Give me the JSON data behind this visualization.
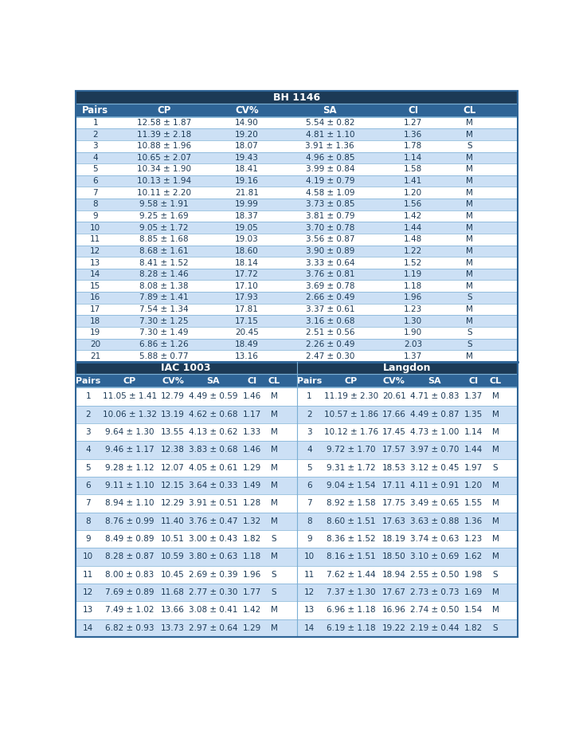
{
  "bh1146_header": "BH 1146",
  "bh1146_cols": [
    "Pairs",
    "CP",
    "CV%",
    "SA",
    "CI",
    "CL"
  ],
  "bh1146_rows": [
    [
      "1",
      "12.58 ± 1.87",
      "14.90",
      "5.54 ± 0.82",
      "1.27",
      "M"
    ],
    [
      "2",
      "11.39 ± 2.18",
      "19.20",
      "4.81 ± 1.10",
      "1.36",
      "M"
    ],
    [
      "3",
      "10.88 ± 1.96",
      "18.07",
      "3.91 ± 1.36",
      "1.78",
      "S"
    ],
    [
      "4",
      "10.65 ± 2.07",
      "19.43",
      "4.96 ± 0.85",
      "1.14",
      "M"
    ],
    [
      "5",
      "10.34 ± 1.90",
      "18.41",
      "3.99 ± 0.84",
      "1.58",
      "M"
    ],
    [
      "6",
      "10.13 ± 1.94",
      "19.16",
      "4.19 ± 0.79",
      "1.41",
      "M"
    ],
    [
      "7",
      "10.11 ± 2.20",
      "21.81",
      "4.58 ± 1.09",
      "1.20",
      "M"
    ],
    [
      "8",
      "9.58 ± 1.91",
      "19.99",
      "3.73 ± 0.85",
      "1.56",
      "M"
    ],
    [
      "9",
      "9.25 ± 1.69",
      "18.37",
      "3.81 ± 0.79",
      "1.42",
      "M"
    ],
    [
      "10",
      "9.05 ± 1.72",
      "19.05",
      "3.70 ± 0.78",
      "1.44",
      "M"
    ],
    [
      "11",
      "8.85 ± 1.68",
      "19.03",
      "3.56 ± 0.87",
      "1.48",
      "M"
    ],
    [
      "12",
      "8.68 ± 1.61",
      "18.60",
      "3.90 ± 0.89",
      "1.22",
      "M"
    ],
    [
      "13",
      "8.41 ± 1.52",
      "18.14",
      "3.33 ± 0.64",
      "1.52",
      "M"
    ],
    [
      "14",
      "8.28 ± 1.46",
      "17.72",
      "3.76 ± 0.81",
      "1.19",
      "M"
    ],
    [
      "15",
      "8.08 ± 1.38",
      "17.10",
      "3.69 ± 0.78",
      "1.18",
      "M"
    ],
    [
      "16",
      "7.89 ± 1.41",
      "17.93",
      "2.66 ± 0.49",
      "1.96",
      "S"
    ],
    [
      "17",
      "7.54 ± 1.34",
      "17.81",
      "3.37 ± 0.61",
      "1.23",
      "M"
    ],
    [
      "18",
      "7.30 ± 1.25",
      "17.15",
      "3.16 ± 0.68",
      "1.30",
      "M"
    ],
    [
      "19",
      "7.30 ± 1.49",
      "20.45",
      "2.51 ± 0.56",
      "1.90",
      "S"
    ],
    [
      "20",
      "6.86 ± 1.26",
      "18.49",
      "2.26 ± 0.49",
      "2.03",
      "S"
    ],
    [
      "21",
      "5.88 ± 0.77",
      "13.16",
      "2.47 ± 0.30",
      "1.37",
      "M"
    ]
  ],
  "iac1003_header": "IAC 1003",
  "langdon_header": "Langdon",
  "sub_cols": [
    "Pairs",
    "CP",
    "CV%",
    "SA",
    "CI",
    "CL"
  ],
  "iac1003_rows": [
    [
      "1",
      "11.05 ± 1.41",
      "12.79",
      "4.49 ± 0.59",
      "1.46",
      "M"
    ],
    [
      "2",
      "10.06 ± 1.32",
      "13.19",
      "4.62 ± 0.68",
      "1.17",
      "M"
    ],
    [
      "3",
      "9.64 ± 1.30",
      "13.55",
      "4.13 ± 0.62",
      "1.33",
      "M"
    ],
    [
      "4",
      "9.46 ± 1.17",
      "12.38",
      "3.83 ± 0.68",
      "1.46",
      "M"
    ],
    [
      "5",
      "9.28 ± 1.12",
      "12.07",
      "4.05 ± 0.61",
      "1.29",
      "M"
    ],
    [
      "6",
      "9.11 ± 1.10",
      "12.15",
      "3.64 ± 0.33",
      "1.49",
      "M"
    ],
    [
      "7",
      "8.94 ± 1.10",
      "12.29",
      "3.91 ± 0.51",
      "1.28",
      "M"
    ],
    [
      "8",
      "8.76 ± 0.99",
      "11.40",
      "3.76 ± 0.47",
      "1.32",
      "M"
    ],
    [
      "9",
      "8.49 ± 0.89",
      "10.51",
      "3.00 ± 0.43",
      "1.82",
      "S"
    ],
    [
      "10",
      "8.28 ± 0.87",
      "10.59",
      "3.80 ± 0.63",
      "1.18",
      "M"
    ],
    [
      "11",
      "8.00 ± 0.83",
      "10.45",
      "2.69 ± 0.39",
      "1.96",
      "S"
    ],
    [
      "12",
      "7.69 ± 0.89",
      "11.68",
      "2.77 ± 0.30",
      "1.77",
      "S"
    ],
    [
      "13",
      "7.49 ± 1.02",
      "13.66",
      "3.08 ± 0.41",
      "1.42",
      "M"
    ],
    [
      "14",
      "6.82 ± 0.93",
      "13.73",
      "2.97 ± 0.64",
      "1.29",
      "M"
    ]
  ],
  "langdon_rows": [
    [
      "1",
      "11.19 ± 2.30",
      "20.61",
      "4.71 ± 0.83",
      "1.37",
      "M"
    ],
    [
      "2",
      "10.57 ± 1.86",
      "17.66",
      "4.49 ± 0.87",
      "1.35",
      "M"
    ],
    [
      "3",
      "10.12 ± 1.76",
      "17.45",
      "4.73 ± 1.00",
      "1.14",
      "M"
    ],
    [
      "4",
      "9.72 ± 1.70",
      "17.57",
      "3.97 ± 0.70",
      "1.44",
      "M"
    ],
    [
      "5",
      "9.31 ± 1.72",
      "18.53",
      "3.12 ± 0.45",
      "1.97",
      "S"
    ],
    [
      "6",
      "9.04 ± 1.54",
      "17.11",
      "4.11 ± 0.91",
      "1.20",
      "M"
    ],
    [
      "7",
      "8.92 ± 1.58",
      "17.75",
      "3.49 ± 0.65",
      "1.55",
      "M"
    ],
    [
      "8",
      "8.60 ± 1.51",
      "17.63",
      "3.63 ± 0.88",
      "1.36",
      "M"
    ],
    [
      "9",
      "8.36 ± 1.52",
      "18.19",
      "3.74 ± 0.63",
      "1.23",
      "M"
    ],
    [
      "10",
      "8.16 ± 1.51",
      "18.50",
      "3.10 ± 0.69",
      "1.62",
      "M"
    ],
    [
      "11",
      "7.62 ± 1.44",
      "18.94",
      "2.55 ± 0.50",
      "1.98",
      "S"
    ],
    [
      "12",
      "7.37 ± 1.30",
      "17.67",
      "2.73 ± 0.73",
      "1.69",
      "M"
    ],
    [
      "13",
      "6.96 ± 1.18",
      "16.96",
      "2.74 ± 0.50",
      "1.54",
      "M"
    ],
    [
      "14",
      "6.19 ± 1.18",
      "19.22",
      "2.19 ± 0.44",
      "1.82",
      "S"
    ]
  ],
  "color_dark": "#1c3a56",
  "color_mid": "#2e6496",
  "color_light": "#cce0f5",
  "color_white": "#ffffff",
  "color_text_hdr": "#ffffff",
  "color_text_body": "#1c3a56",
  "color_border": "#7bafd4",
  "color_border_dark": "#2e6496"
}
